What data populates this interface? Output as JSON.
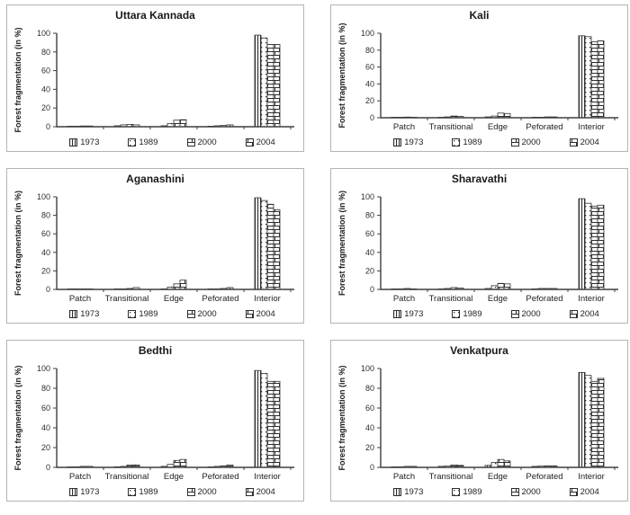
{
  "page": {
    "background": "#ffffff",
    "panel_border_color": "#b3b3b3",
    "axis_color": "#3f3f3f",
    "bar_outline_color": "#2e2e2e",
    "text_color": "#1a1a1a"
  },
  "legend_years": [
    "1973",
    "1989",
    "2000",
    "2004"
  ],
  "chart_data": [
    {
      "type": "bar",
      "title": "Uttara Kannada",
      "ylabel": "Forest fragmentation (in %)",
      "ylim": [
        0,
        100
      ],
      "yticks": [
        0,
        20,
        40,
        60,
        80,
        100
      ],
      "grid": false,
      "legend_position": "bottom",
      "categories": [
        "Patch",
        "Transitional",
        "Edge",
        "Peforated",
        "Interior"
      ],
      "show_category_labels": false,
      "series": [
        {
          "name": "1973",
          "pattern": "vertical-stripes",
          "values": [
            0.5,
            1,
            1,
            0.5,
            98
          ]
        },
        {
          "name": "1989",
          "pattern": "dots",
          "values": [
            0.5,
            2,
            3.5,
            1,
            95
          ]
        },
        {
          "name": "2000",
          "pattern": "wide-brick",
          "values": [
            0.8,
            2.5,
            7,
            1.5,
            88
          ]
        },
        {
          "name": "2004",
          "pattern": "brick",
          "values": [
            0.8,
            2,
            7.5,
            2,
            88
          ]
        }
      ]
    },
    {
      "type": "bar",
      "title": "Kali",
      "ylabel": "Forest fragmentation (in %)",
      "ylim": [
        0,
        100
      ],
      "yticks": [
        0,
        20,
        40,
        60,
        80,
        100
      ],
      "grid": false,
      "legend_position": "bottom",
      "categories": [
        "Patch",
        "Transitional",
        "Edge",
        "Peforated",
        "Interior"
      ],
      "show_category_labels": true,
      "series": [
        {
          "name": "1973",
          "pattern": "vertical-stripes",
          "values": [
            0.3,
            0.5,
            1,
            0.5,
            97
          ]
        },
        {
          "name": "1989",
          "pattern": "dots",
          "values": [
            0.3,
            1,
            2,
            0.5,
            96
          ]
        },
        {
          "name": "2000",
          "pattern": "wide-brick",
          "values": [
            0.8,
            2,
            5.5,
            1,
            90
          ]
        },
        {
          "name": "2004",
          "pattern": "brick",
          "values": [
            0.5,
            1.5,
            5,
            1,
            91
          ]
        }
      ]
    },
    {
      "type": "bar",
      "title": "Aganashini",
      "ylabel": "Forest fragmentation (in %)",
      "ylim": [
        0,
        100
      ],
      "yticks": [
        0,
        20,
        40,
        60,
        80,
        100
      ],
      "grid": false,
      "legend_position": "bottom",
      "categories": [
        "Patch",
        "Transitional",
        "Edge",
        "Peforated",
        "Interior"
      ],
      "show_category_labels": true,
      "series": [
        {
          "name": "1973",
          "pattern": "vertical-stripes",
          "values": [
            0.2,
            0.3,
            0.5,
            0.3,
            99
          ]
        },
        {
          "name": "1989",
          "pattern": "dots",
          "values": [
            0.3,
            0.5,
            2.5,
            0.5,
            96
          ]
        },
        {
          "name": "2000",
          "pattern": "wide-brick",
          "values": [
            0.5,
            1,
            6,
            1,
            92
          ]
        },
        {
          "name": "2004",
          "pattern": "brick",
          "values": [
            0.5,
            2,
            10,
            2,
            86
          ]
        }
      ]
    },
    {
      "type": "bar",
      "title": "Sharavathi",
      "ylabel": "Forest fragmentation (in %)",
      "ylim": [
        0,
        100
      ],
      "yticks": [
        0,
        20,
        40,
        60,
        80,
        100
      ],
      "grid": false,
      "legend_position": "bottom",
      "categories": [
        "Patch",
        "Transitional",
        "Edge",
        "Peforated",
        "Interior"
      ],
      "show_category_labels": true,
      "series": [
        {
          "name": "1973",
          "pattern": "vertical-stripes",
          "values": [
            0.3,
            0.5,
            1,
            0.5,
            98
          ]
        },
        {
          "name": "1989",
          "pattern": "dots",
          "values": [
            0.3,
            1,
            4,
            1,
            93
          ]
        },
        {
          "name": "2000",
          "pattern": "wide-brick",
          "values": [
            1,
            2,
            6.5,
            1,
            90
          ]
        },
        {
          "name": "2004",
          "pattern": "brick",
          "values": [
            0.5,
            1.5,
            6,
            1,
            91
          ]
        }
      ]
    },
    {
      "type": "bar",
      "title": "Bedthi",
      "ylabel": "Forest fragmentation (in %)",
      "ylim": [
        0,
        100
      ],
      "yticks": [
        0,
        20,
        40,
        60,
        80,
        100
      ],
      "grid": false,
      "legend_position": "bottom",
      "categories": [
        "Patch",
        "Transitional",
        "Edge",
        "Peforated",
        "Interior"
      ],
      "show_category_labels": true,
      "series": [
        {
          "name": "1973",
          "pattern": "vertical-stripes",
          "values": [
            0.3,
            0.5,
            1,
            0.5,
            98
          ]
        },
        {
          "name": "1989",
          "pattern": "dots",
          "values": [
            0.5,
            1,
            3,
            1,
            95
          ]
        },
        {
          "name": "2000",
          "pattern": "wide-brick",
          "values": [
            1,
            2.5,
            7,
            1.5,
            87
          ]
        },
        {
          "name": "2004",
          "pattern": "brick",
          "values": [
            1,
            2.5,
            8,
            2.5,
            87
          ]
        }
      ]
    },
    {
      "type": "bar",
      "title": "Venkatpura",
      "ylabel": "Forest fragmentation (in %)",
      "ylim": [
        0,
        100
      ],
      "yticks": [
        0,
        20,
        40,
        60,
        80,
        100
      ],
      "grid": false,
      "legend_position": "bottom",
      "categories": [
        "Patch",
        "Transitional",
        "Edge",
        "Peforated",
        "Interior"
      ],
      "show_category_labels": true,
      "series": [
        {
          "name": "1973",
          "pattern": "vertical-stripes",
          "values": [
            0.5,
            1,
            2,
            1,
            96
          ]
        },
        {
          "name": "1989",
          "pattern": "dots",
          "values": [
            0.5,
            1.5,
            5,
            1.5,
            93
          ]
        },
        {
          "name": "2000",
          "pattern": "wide-brick",
          "values": [
            1,
            2.5,
            8,
            1.5,
            87
          ]
        },
        {
          "name": "2004",
          "pattern": "brick",
          "values": [
            1,
            2,
            6.5,
            1.5,
            90
          ]
        }
      ]
    }
  ]
}
